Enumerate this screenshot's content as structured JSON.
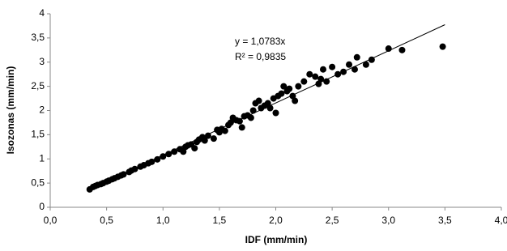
{
  "chart_data": {
    "type": "scatter",
    "x_label": "IDF (mm/min)",
    "y_label": "Isozonas (mm/min)",
    "color": "#000000",
    "x": [
      0.35,
      0.38,
      0.4,
      0.42,
      0.45,
      0.47,
      0.5,
      0.52,
      0.55,
      0.57,
      0.6,
      0.63,
      0.65,
      0.7,
      0.72,
      0.75,
      0.8,
      0.83,
      0.87,
      0.9,
      0.95,
      1.0,
      1.05,
      1.1,
      1.15,
      1.18,
      1.2,
      1.22,
      1.25,
      1.28,
      1.3,
      1.32,
      1.35,
      1.37,
      1.4,
      1.45,
      1.48,
      1.5,
      1.52,
      1.55,
      1.58,
      1.6,
      1.62,
      1.65,
      1.68,
      1.7,
      1.72,
      1.75,
      1.78,
      1.8,
      1.82,
      1.85,
      1.87,
      1.9,
      1.93,
      1.95,
      1.98,
      2.0,
      2.02,
      2.05,
      2.07,
      2.1,
      2.12,
      2.15,
      2.17,
      2.2,
      2.25,
      2.3,
      2.35,
      2.38,
      2.4,
      2.42,
      2.45,
      2.5,
      2.55,
      2.6,
      2.65,
      2.7,
      2.72,
      2.8,
      2.85,
      3.0,
      3.12,
      3.48
    ],
    "values": [
      0.37,
      0.42,
      0.44,
      0.46,
      0.48,
      0.5,
      0.53,
      0.55,
      0.58,
      0.6,
      0.63,
      0.66,
      0.68,
      0.73,
      0.76,
      0.79,
      0.84,
      0.87,
      0.91,
      0.94,
      0.99,
      1.05,
      1.1,
      1.15,
      1.2,
      1.15,
      1.25,
      1.28,
      1.3,
      1.22,
      1.35,
      1.4,
      1.45,
      1.38,
      1.48,
      1.42,
      1.6,
      1.55,
      1.62,
      1.58,
      1.7,
      1.75,
      1.85,
      1.8,
      1.78,
      1.65,
      1.88,
      1.9,
      1.85,
      2.0,
      2.15,
      2.2,
      2.05,
      2.1,
      2.15,
      2.05,
      2.25,
      1.95,
      2.3,
      2.35,
      2.5,
      2.4,
      2.45,
      2.3,
      2.2,
      2.5,
      2.6,
      2.75,
      2.7,
      2.55,
      2.65,
      2.85,
      2.6,
      2.9,
      2.75,
      2.8,
      2.95,
      2.85,
      3.1,
      2.95,
      3.05,
      3.28,
      3.25,
      3.32
    ],
    "trendline": {
      "equation": "y = 1,0783x",
      "r2": "R² = 0,9835",
      "slope": 1.0783,
      "x": [
        0.35,
        3.5
      ]
    },
    "xlim": [
      0,
      4
    ],
    "ylim": [
      0,
      4
    ],
    "xticks": [
      {
        "value": 0,
        "label": "0,0"
      },
      {
        "value": 0.5,
        "label": "0,5"
      },
      {
        "value": 1,
        "label": "1,0"
      },
      {
        "value": 1.5,
        "label": "1,5"
      },
      {
        "value": 2,
        "label": "2,0"
      },
      {
        "value": 2.5,
        "label": "2,5"
      },
      {
        "value": 3,
        "label": "3,0"
      },
      {
        "value": 3.5,
        "label": "3,5"
      },
      {
        "value": 4,
        "label": "4,0"
      }
    ],
    "yticks": [
      0,
      {
        "value": 0.5,
        "label": "0,5"
      },
      1,
      {
        "value": 1.5,
        "label": "1,5"
      },
      2,
      {
        "value": 2.5,
        "label": "2,5"
      },
      3,
      {
        "value": 3.5,
        "label": "3,5"
      },
      4
    ]
  }
}
